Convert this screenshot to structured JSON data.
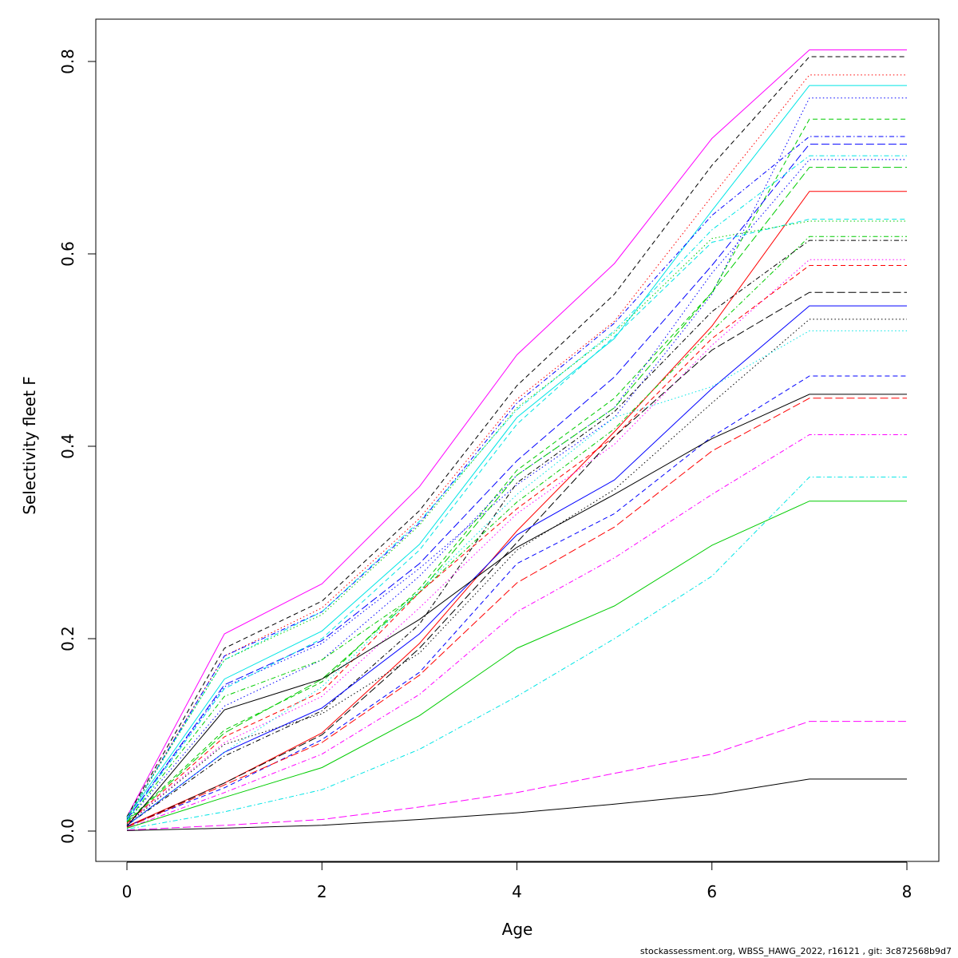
{
  "footer": "stockassessment.org, WBSS_HAWG_2022, r16121 , git: 3c872568b9d7",
  "chart_data": {
    "type": "line",
    "xlabel": "Age",
    "ylabel": "Selectivity fleet F",
    "xlim": [
      0,
      8
    ],
    "ylim": [
      0,
      0.8
    ],
    "xticks": [
      0,
      2,
      4,
      6,
      8
    ],
    "yticks": [
      0.0,
      0.2,
      0.4,
      0.6,
      0.8
    ],
    "ytick_labels": [
      "0.0",
      "0.2",
      "0.4",
      "0.6",
      "0.8"
    ],
    "grid": false,
    "legend": "none",
    "x": [
      0,
      1,
      2,
      3,
      4,
      5,
      6,
      7,
      8
    ],
    "series": [
      {
        "color": "#ff00ff",
        "dash": "solid",
        "values": [
          0.015,
          0.205,
          0.257,
          0.358,
          0.495,
          0.59,
          0.72,
          0.812,
          0.812
        ]
      },
      {
        "color": "#000000",
        "dash": "dashed",
        "values": [
          0.015,
          0.19,
          0.239,
          0.333,
          0.463,
          0.558,
          0.692,
          0.805,
          0.805
        ]
      },
      {
        "color": "#ff0000",
        "dash": "dotted",
        "values": [
          0.014,
          0.182,
          0.232,
          0.325,
          0.449,
          0.53,
          0.66,
          0.786,
          0.786
        ]
      },
      {
        "color": "#00e5e5",
        "dash": "solid",
        "values": [
          0.014,
          0.158,
          0.208,
          0.298,
          0.43,
          0.512,
          0.645,
          0.775,
          0.775
        ]
      },
      {
        "color": "#0000ff",
        "dash": "dotted",
        "values": [
          0.012,
          0.15,
          0.195,
          0.273,
          0.36,
          0.43,
          0.558,
          0.762,
          0.762
        ]
      },
      {
        "color": "#00cc00",
        "dash": "dashed",
        "values": [
          0.01,
          0.105,
          0.155,
          0.252,
          0.375,
          0.45,
          0.56,
          0.74,
          0.74
        ]
      },
      {
        "color": "#0000ff",
        "dash": "dashdot",
        "values": [
          0.013,
          0.182,
          0.228,
          0.32,
          0.445,
          0.528,
          0.64,
          0.722,
          0.722
        ]
      },
      {
        "color": "#0000ff",
        "dash": "longdash",
        "values": [
          0.012,
          0.152,
          0.198,
          0.278,
          0.385,
          0.472,
          0.588,
          0.714,
          0.714
        ]
      },
      {
        "color": "#00e5e5",
        "dash": "dashdot",
        "values": [
          0.014,
          0.178,
          0.228,
          0.322,
          0.438,
          0.52,
          0.625,
          0.702,
          0.702
        ]
      },
      {
        "color": "#0000ff",
        "dash": "dotted",
        "values": [
          0.01,
          0.13,
          0.178,
          0.265,
          0.37,
          0.44,
          0.58,
          0.698,
          0.698
        ]
      },
      {
        "color": "#00cc00",
        "dash": "longdash",
        "values": [
          0.009,
          0.102,
          0.158,
          0.248,
          0.37,
          0.44,
          0.56,
          0.69,
          0.69
        ]
      },
      {
        "color": "#ff0000",
        "dash": "solid",
        "values": [
          0.005,
          0.05,
          0.102,
          0.195,
          0.312,
          0.415,
          0.525,
          0.665,
          0.665
        ]
      },
      {
        "color": "#00e5e5",
        "dash": "dashed",
        "values": [
          0.011,
          0.148,
          0.2,
          0.292,
          0.423,
          0.514,
          0.612,
          0.636,
          0.636
        ]
      },
      {
        "color": "#00cc00",
        "dash": "dotted",
        "values": [
          0.013,
          0.178,
          0.225,
          0.318,
          0.44,
          0.518,
          0.616,
          0.634,
          0.634
        ]
      },
      {
        "color": "#00cc00",
        "dash": "dashdot",
        "values": [
          0.01,
          0.14,
          0.178,
          0.248,
          0.342,
          0.418,
          0.52,
          0.618,
          0.618
        ]
      },
      {
        "color": "#000000",
        "dash": "dashdot",
        "values": [
          0.006,
          0.078,
          0.125,
          0.215,
          0.362,
          0.436,
          0.54,
          0.614,
          0.614
        ]
      },
      {
        "color": "#ff00ff",
        "dash": "dotted",
        "values": [
          0.008,
          0.092,
          0.14,
          0.232,
          0.33,
          0.402,
          0.505,
          0.594,
          0.594
        ]
      },
      {
        "color": "#ff0000",
        "dash": "dashed",
        "values": [
          0.008,
          0.098,
          0.145,
          0.248,
          0.335,
          0.41,
          0.512,
          0.588,
          0.588
        ]
      },
      {
        "color": "#000000",
        "dash": "longdash",
        "values": [
          0.004,
          0.05,
          0.1,
          0.19,
          0.3,
          0.41,
          0.5,
          0.56,
          0.56
        ]
      },
      {
        "color": "#0000ff",
        "dash": "solid",
        "values": [
          0.006,
          0.082,
          0.128,
          0.205,
          0.308,
          0.365,
          0.46,
          0.546,
          0.546
        ]
      },
      {
        "color": "#000000",
        "dash": "dotted",
        "values": [
          0.007,
          0.09,
          0.122,
          0.185,
          0.292,
          0.355,
          0.445,
          0.532,
          0.532
        ]
      },
      {
        "color": "#00e5e5",
        "dash": "dotted",
        "values": [
          0.006,
          0.082,
          0.15,
          0.25,
          0.35,
          0.43,
          0.462,
          0.52,
          0.52
        ]
      },
      {
        "color": "#0000ff",
        "dash": "dashed",
        "values": [
          0.005,
          0.045,
          0.095,
          0.165,
          0.278,
          0.33,
          0.41,
          0.473,
          0.473
        ]
      },
      {
        "color": "#000000",
        "dash": "solid",
        "values": [
          0.005,
          0.126,
          0.158,
          0.22,
          0.295,
          0.35,
          0.408,
          0.454,
          0.454
        ]
      },
      {
        "color": "#ff0000",
        "dash": "longdash",
        "values": [
          0.004,
          0.048,
          0.092,
          0.162,
          0.258,
          0.316,
          0.395,
          0.45,
          0.45
        ]
      },
      {
        "color": "#ff00ff",
        "dash": "dashdot",
        "values": [
          0.003,
          0.04,
          0.08,
          0.142,
          0.228,
          0.284,
          0.35,
          0.412,
          0.412
        ]
      },
      {
        "color": "#00e5e5",
        "dash": "dashdot",
        "values": [
          0.002,
          0.02,
          0.043,
          0.085,
          0.14,
          0.2,
          0.265,
          0.368,
          0.368
        ]
      },
      {
        "color": "#00cc00",
        "dash": "solid",
        "values": [
          0.003,
          0.035,
          0.066,
          0.12,
          0.19,
          0.234,
          0.297,
          0.343,
          0.343
        ]
      },
      {
        "color": "#ff00ff",
        "dash": "longdash",
        "values": [
          0.001,
          0.006,
          0.012,
          0.025,
          0.04,
          0.06,
          0.08,
          0.114,
          0.114
        ]
      },
      {
        "color": "#000000",
        "dash": "solid",
        "values": [
          0.0005,
          0.003,
          0.006,
          0.012,
          0.019,
          0.028,
          0.038,
          0.054,
          0.054
        ]
      }
    ]
  }
}
